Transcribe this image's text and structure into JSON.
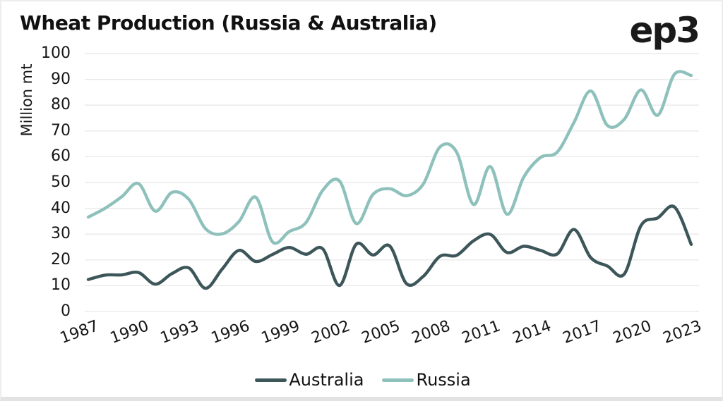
{
  "card": {
    "title": "Wheat Production (Russia & Australia)",
    "logo": "ep3"
  },
  "colors": {
    "australia_line": "#3d565a",
    "russia_line": "#8ec1bc",
    "gridline": "#e8e8e8",
    "text": "#141414",
    "card_border": "#ededed",
    "bottom_strip": "#e3e3e3",
    "background": "#ffffff"
  },
  "chart_data": {
    "type": "line",
    "title": "Wheat Production (Russia & Australia)",
    "xlabel": "",
    "ylabel": "Million mt",
    "ylim": [
      0,
      100
    ],
    "y_ticks": [
      0,
      10,
      20,
      30,
      40,
      50,
      60,
      70,
      80,
      90,
      100
    ],
    "x_tick_years": [
      1987,
      1990,
      1993,
      1996,
      1999,
      2002,
      2005,
      2008,
      2011,
      2014,
      2017,
      2020,
      2023
    ],
    "grid": "horizontal-only",
    "smooth": true,
    "legend_position": "bottom-center",
    "x": [
      1987,
      1988,
      1989,
      1990,
      1991,
      1992,
      1993,
      1994,
      1995,
      1996,
      1997,
      1998,
      1999,
      2000,
      2001,
      2002,
      2003,
      2004,
      2005,
      2006,
      2007,
      2008,
      2009,
      2010,
      2011,
      2012,
      2013,
      2014,
      2015,
      2016,
      2017,
      2018,
      2019,
      2020,
      2021,
      2022,
      2023
    ],
    "series": [
      {
        "name": "Australia",
        "color": "#3d565a",
        "values": [
          12.4,
          14.1,
          14.2,
          15.1,
          10.6,
          14.7,
          16.9,
          9.0,
          16.5,
          23.7,
          19.4,
          22.1,
          24.8,
          22.2,
          24.3,
          10.1,
          26.1,
          21.9,
          25.4,
          10.8,
          13.6,
          21.4,
          21.8,
          27.4,
          29.9,
          22.9,
          25.3,
          23.7,
          22.3,
          31.8,
          20.9,
          17.6,
          14.5,
          33.3,
          36.3,
          40.5,
          26.0
        ]
      },
      {
        "name": "Russia",
        "color": "#8ec1bc",
        "values": [
          36.6,
          40.0,
          44.5,
          49.6,
          38.9,
          46.2,
          43.5,
          32.1,
          30.1,
          34.9,
          44.3,
          27.0,
          31.0,
          34.5,
          47.0,
          50.6,
          34.1,
          45.4,
          47.6,
          44.9,
          49.4,
          63.8,
          61.7,
          41.5,
          56.2,
          37.7,
          52.1,
          59.7,
          61.8,
          73.3,
          85.5,
          72.1,
          74.5,
          85.9,
          76.1,
          92.0,
          91.5
        ]
      }
    ]
  }
}
